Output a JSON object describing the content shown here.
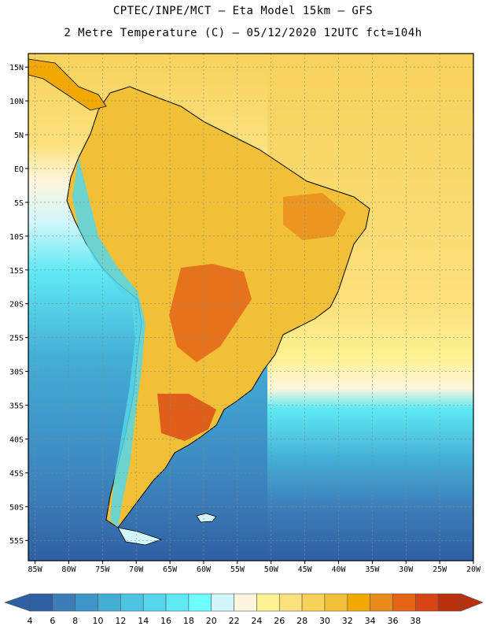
{
  "header": {
    "line1": "CPTEC/INPE/MCT –  Eta Model 15km – GFS",
    "line2": "2 Metre Temperature (C) – 05/12/2020 12UTC fct=104h"
  },
  "axes": {
    "lat_labels": [
      "15N",
      "10N",
      "5N",
      "EQ",
      "5S",
      "10S",
      "15S",
      "20S",
      "25S",
      "30S",
      "35S",
      "40S",
      "45S",
      "50S",
      "55S"
    ],
    "lon_labels": [
      "85W",
      "80W",
      "75W",
      "70W",
      "65W",
      "60W",
      "55W",
      "50W",
      "45W",
      "40W",
      "35W",
      "30W",
      "25W",
      "20W"
    ]
  },
  "colorbar": {
    "labels": [
      "4",
      "6",
      "8",
      "10",
      "12",
      "14",
      "16",
      "18",
      "20",
      "22",
      "24",
      "26",
      "28",
      "30",
      "32",
      "34",
      "36",
      "38"
    ],
    "colors": [
      "#2d5fa2",
      "#3c7cb8",
      "#3e95c8",
      "#44aed6",
      "#4fc4e2",
      "#55d6ea",
      "#5fe9f3",
      "#70ffff",
      "#d3f6fa",
      "#fff6dd",
      "#fcf291",
      "#fbe17d",
      "#f7d25b",
      "#f2c036",
      "#f1a800",
      "#e98b1a",
      "#e46418",
      "#d84514",
      "#b8300e"
    ]
  }
}
